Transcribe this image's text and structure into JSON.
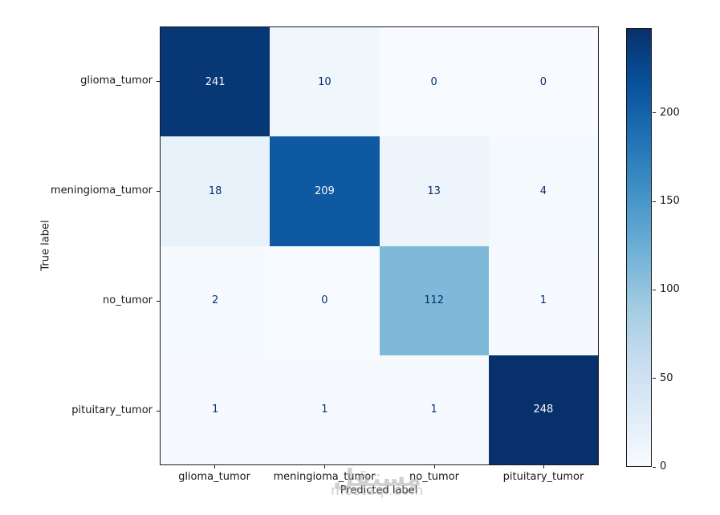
{
  "figure": {
    "background": "#ffffff"
  },
  "chart_data": {
    "type": "heatmap",
    "subtype": "confusion_matrix",
    "title": "",
    "xlabel": "Predicted label",
    "ylabel": "True label",
    "categories": [
      "glioma_tumor",
      "meningioma_tumor",
      "no_tumor",
      "pituitary_tumor"
    ],
    "matrix": [
      [
        241,
        10,
        0,
        0
      ],
      [
        18,
        209,
        13,
        4
      ],
      [
        2,
        0,
        112,
        1
      ],
      [
        1,
        1,
        1,
        248
      ]
    ],
    "vmin": 0,
    "vmax": 248,
    "colorbar_ticks": [
      0,
      50,
      100,
      150,
      200
    ],
    "colormap": "Blues",
    "colormap_stops": [
      "#f7fbff",
      "#deebf7",
      "#c6dbef",
      "#9ecae1",
      "#6baed6",
      "#4292c6",
      "#2171b5",
      "#08519c",
      "#08306b"
    ],
    "cell_text_color_light": "#f2f7fc",
    "cell_text_color_dark": "#08306b",
    "grid": false,
    "legend_position": "right-colorbar"
  },
  "watermark": {
    "logo_text": "مستقل",
    "url_text": "mostaql.com",
    "color": "#ababab"
  }
}
